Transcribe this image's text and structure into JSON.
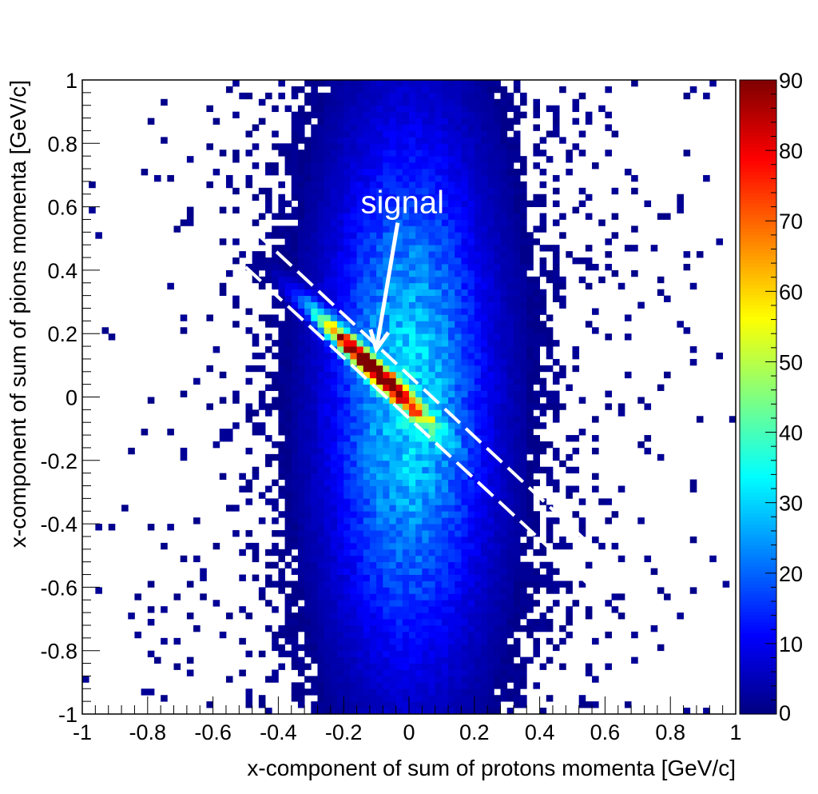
{
  "chart_data": {
    "type": "heatmap",
    "title": "",
    "xlabel": "x-component of sum of protons momenta [GeV/c]",
    "ylabel": "x-component of sum of pions momenta [GeV/c]",
    "xlim": [
      -1,
      1
    ],
    "ylim": [
      -1,
      1
    ],
    "bins": [
      100,
      100
    ],
    "x_ticks": [
      "-1",
      "-0.8",
      "-0.6",
      "-0.4",
      "-0.2",
      "0",
      "0.2",
      "0.4",
      "0.6",
      "0.8",
      "1"
    ],
    "y_ticks": [
      "-1",
      "-0.8",
      "-0.6",
      "-0.4",
      "-0.2",
      "0",
      "0.2",
      "0.4",
      "0.6",
      "0.8",
      "1"
    ],
    "colorbar": {
      "range": [
        0,
        90
      ],
      "ticks": [
        "0",
        "10",
        "20",
        "30",
        "40",
        "50",
        "60",
        "70",
        "80",
        "90"
      ],
      "palette": [
        "#00007f",
        "#0000ff",
        "#0080ff",
        "#00ffff",
        "#80ff80",
        "#ffff00",
        "#ff8000",
        "#ff0000",
        "#7f0000"
      ]
    },
    "components": {
      "background": {
        "description": "broad band centered at x=0",
        "x_center": 0.0,
        "x_sigma": 0.16,
        "y_sigma": 0.55,
        "peak_count": 30
      },
      "signal": {
        "description": "narrow correlated band along y = -x",
        "peak_x": -0.12,
        "peak_y": 0.1,
        "peak_count": 90,
        "band_half_width": 0.02,
        "length_sigma": 0.16
      }
    },
    "cut_lines": [
      {
        "x": [
          -0.47,
          0.58
        ],
        "y": [
          0.52,
          -0.49
        ]
      },
      {
        "x": [
          -0.5,
          0.58
        ],
        "y": [
          0.41,
          -0.62
        ]
      }
    ],
    "annotations": [
      {
        "text": "signal",
        "x": -0.02,
        "y": 0.58,
        "arrow_to": [
          -0.1,
          0.15
        ]
      }
    ]
  }
}
